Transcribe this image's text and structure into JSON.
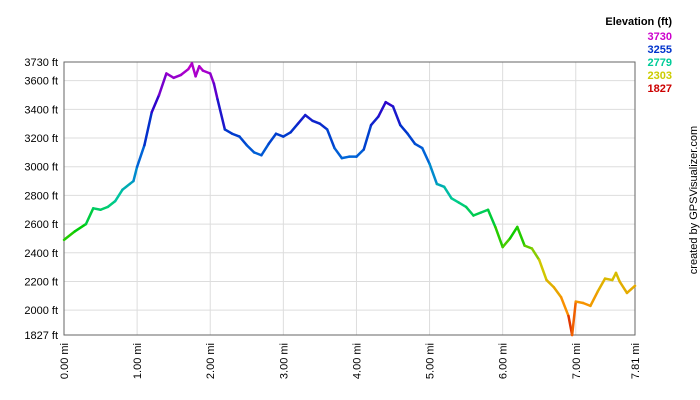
{
  "chart_data": {
    "type": "line",
    "title": "",
    "xlabel": "",
    "ylabel": "",
    "xlim": [
      0,
      7.81
    ],
    "ylim": [
      1827,
      3730
    ],
    "grid": true,
    "x_ticks": [
      "0.00 mi",
      "1.00 mi",
      "2.00 mi",
      "3.00 mi",
      "4.00 mi",
      "5.00 mi",
      "6.00 mi",
      "7.00 mi",
      "7.81 mi"
    ],
    "x_tick_values": [
      0,
      1,
      2,
      3,
      4,
      5,
      6,
      7,
      7.81
    ],
    "y_ticks": [
      "1827 ft",
      "2000 ft",
      "2200 ft",
      "2400 ft",
      "2600 ft",
      "2800 ft",
      "3000 ft",
      "3200 ft",
      "3400 ft",
      "3600 ft",
      "3730 ft"
    ],
    "y_tick_values": [
      1827,
      2000,
      2200,
      2400,
      2600,
      2800,
      3000,
      3200,
      3400,
      3600,
      3730
    ],
    "legend": {
      "title": "Elevation (ft)",
      "placement": "top-right",
      "items": [
        {
          "label": "3730",
          "color": "#cc00cc"
        },
        {
          "label": "3255",
          "color": "#0033cc"
        },
        {
          "label": "2779",
          "color": "#00cc99"
        },
        {
          "label": "2303",
          "color": "#cccc00"
        },
        {
          "label": "1827",
          "color": "#cc0000"
        }
      ]
    },
    "series": [
      {
        "x": [
          0,
          0.15,
          0.3,
          0.4,
          0.5,
          0.6,
          0.7,
          0.8,
          0.9,
          0.95,
          1.0,
          1.1,
          1.2,
          1.3,
          1.4,
          1.5,
          1.6,
          1.7,
          1.75,
          1.8,
          1.85,
          1.9,
          2.0,
          2.05,
          2.1,
          2.2,
          2.3,
          2.4,
          2.5,
          2.6,
          2.7,
          2.8,
          2.9,
          3.0,
          3.1,
          3.2,
          3.3,
          3.4,
          3.5,
          3.6,
          3.7,
          3.8,
          3.9,
          4.0,
          4.1,
          4.2,
          4.3,
          4.4,
          4.5,
          4.6,
          4.7,
          4.8,
          4.9,
          5.0,
          5.1,
          5.2,
          5.3,
          5.4,
          5.5,
          5.6,
          5.7,
          5.8,
          5.9,
          6.0,
          6.1,
          6.2,
          6.3,
          6.4,
          6.5,
          6.6,
          6.7,
          6.8,
          6.9,
          6.95,
          7.0,
          7.1,
          7.2,
          7.3,
          7.4,
          7.5,
          7.55,
          7.6,
          7.7,
          7.81
        ],
        "y": [
          2490,
          2550,
          2600,
          2710,
          2700,
          2720,
          2760,
          2840,
          2880,
          2900,
          3000,
          3150,
          3380,
          3500,
          3650,
          3620,
          3640,
          3680,
          3720,
          3630,
          3700,
          3670,
          3650,
          3580,
          3470,
          3260,
          3230,
          3210,
          3150,
          3100,
          3080,
          3160,
          3230,
          3210,
          3240,
          3300,
          3360,
          3320,
          3300,
          3260,
          3130,
          3060,
          3070,
          3070,
          3120,
          3290,
          3350,
          3450,
          3420,
          3290,
          3230,
          3160,
          3130,
          3020,
          2880,
          2860,
          2780,
          2750,
          2720,
          2660,
          2680,
          2700,
          2580,
          2440,
          2500,
          2580,
          2450,
          2430,
          2350,
          2210,
          2160,
          2090,
          1960,
          1827,
          2060,
          2050,
          2030,
          2130,
          2220,
          2210,
          2260,
          2200,
          2120,
          2170
        ]
      }
    ]
  },
  "credit": "created by GPSVisualizer.com"
}
